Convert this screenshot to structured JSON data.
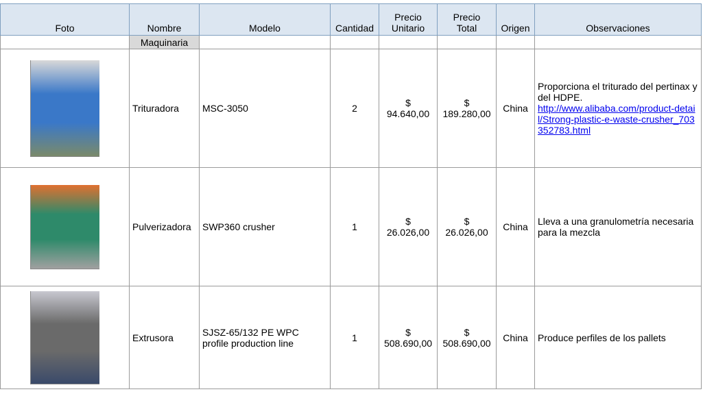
{
  "table": {
    "headers": [
      "Foto",
      "Nombre",
      "Modelo",
      "Cantidad",
      "Precio\nUnitario",
      "Precio\nTotal",
      "Origen",
      "Observaciones"
    ],
    "section": "Maquinaria",
    "rows": [
      {
        "nombre": "Trituradora",
        "modelo": "MSC-3050",
        "cantidad": 2,
        "precio_unitario": "$\n94.640,00",
        "precio_total": "$\n189.280,00",
        "origen": "China",
        "observaciones": "Proporciona el triturado del pertinax y del HDPE.",
        "link": "http://www.alibaba.com/product-detail/Strong-plastic-e-waste-crusher_703352783.html"
      },
      {
        "nombre": "Pulverizadora",
        "modelo": "SWP360 crusher",
        "cantidad": 1,
        "precio_unitario": "$\n26.026,00",
        "precio_total": "$\n26.026,00",
        "origen": "China",
        "observaciones": "Lleva a una granulometría necesaria para la mezcla"
      },
      {
        "nombre": "Extrusora",
        "modelo": "SJSZ-65/132 PE WPC profile production line",
        "cantidad": 1,
        "precio_unitario": "$\n508.690,00",
        "precio_total": "$\n508.690,00",
        "origen": "China",
        "observaciones": "Produce perfiles de los pallets"
      }
    ]
  }
}
